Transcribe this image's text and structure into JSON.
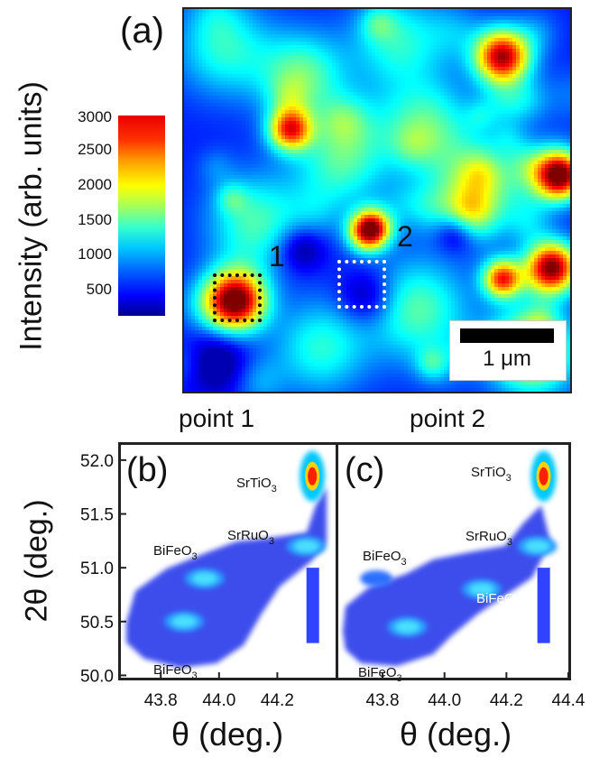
{
  "chart_data": [
    {
      "panel": "(a)",
      "type": "heatmap",
      "colorbar": {
        "label": "Intensity (arb. units)",
        "range": [
          0,
          3000
        ],
        "ticks": [
          "3000",
          "2500",
          "2000",
          "1500",
          "1000",
          "500"
        ],
        "colormap": "jet"
      },
      "markers": [
        {
          "label": "1",
          "color": "#000000"
        },
        {
          "label": "2",
          "color": "#ffffff"
        }
      ],
      "scale_bar": "1 μm"
    },
    {
      "panel": "(b)",
      "type": "heatmap",
      "title": "point 1",
      "xlabel": "θ (deg.)",
      "ylabel": "2θ (deg.)",
      "xlim": [
        43.66,
        44.4
      ],
      "ylim": [
        49.97,
        52.15
      ],
      "x_ticks": [
        "43.8",
        "44.0",
        "44.2"
      ],
      "y_ticks": [
        "52.0",
        "51.5",
        "51.0",
        "50.5",
        "50.0"
      ],
      "peaks": [
        {
          "label": "SrTiO3",
          "x": 44.32,
          "y": 51.85,
          "intensity": "high"
        },
        {
          "label": "SrRuO3",
          "x": 44.3,
          "y": 51.2,
          "intensity": "medium"
        },
        {
          "label": "BiFeO3",
          "x": 43.95,
          "y": 50.9,
          "intensity": "medium"
        },
        {
          "label": "BiFeO3",
          "x": 43.88,
          "y": 50.5,
          "intensity": "medium"
        }
      ]
    },
    {
      "panel": "(c)",
      "type": "heatmap",
      "title": "point 2",
      "xlabel": "θ (deg.)",
      "xlim": [
        43.66,
        44.4
      ],
      "ylim": [
        49.97,
        52.15
      ],
      "x_ticks": [
        "43.8",
        "44.0",
        "44.2",
        "44.4"
      ],
      "peaks": [
        {
          "label": "SrTiO3",
          "x": 44.32,
          "y": 51.85,
          "intensity": "high"
        },
        {
          "label": "SrRuO3",
          "x": 44.3,
          "y": 51.2,
          "intensity": "medium"
        },
        {
          "label": "BiFeO3",
          "x": 43.78,
          "y": 50.9,
          "intensity": "low"
        },
        {
          "label": "BiFeO3",
          "x": 44.12,
          "y": 50.8,
          "intensity": "medium"
        },
        {
          "label": "BiFeO3",
          "x": 43.88,
          "y": 50.45,
          "intensity": "medium"
        }
      ]
    }
  ],
  "panel_a": {
    "label": "(a)",
    "ylabel": "Intensity (arb. units)",
    "point1": "1",
    "point2": "2",
    "scalebar": "1 μm"
  },
  "panels_bc": {
    "label_b": "(b)",
    "label_c": "(c)",
    "title_b": "point 1",
    "title_c": "point 2",
    "ylabel": "2θ (deg.)",
    "xlabel": "θ (deg.)",
    "y_ticks": [
      "52.0",
      "51.5",
      "51.0",
      "50.5",
      "50.0"
    ],
    "x_ticks_b": [
      "43.8",
      "44.0",
      "44.2"
    ],
    "x_ticks_c": [
      "43.8",
      "44.0",
      "44.2",
      "44.4"
    ],
    "peak_labels_b": [
      "SrTiO3",
      "SrRuO3",
      "BiFeO3",
      "BiFeO3"
    ],
    "peak_labels_c": [
      "SrTiO3",
      "SrRuO3",
      "BiFeO3",
      "BiFeO3",
      "BiFeO3"
    ]
  }
}
